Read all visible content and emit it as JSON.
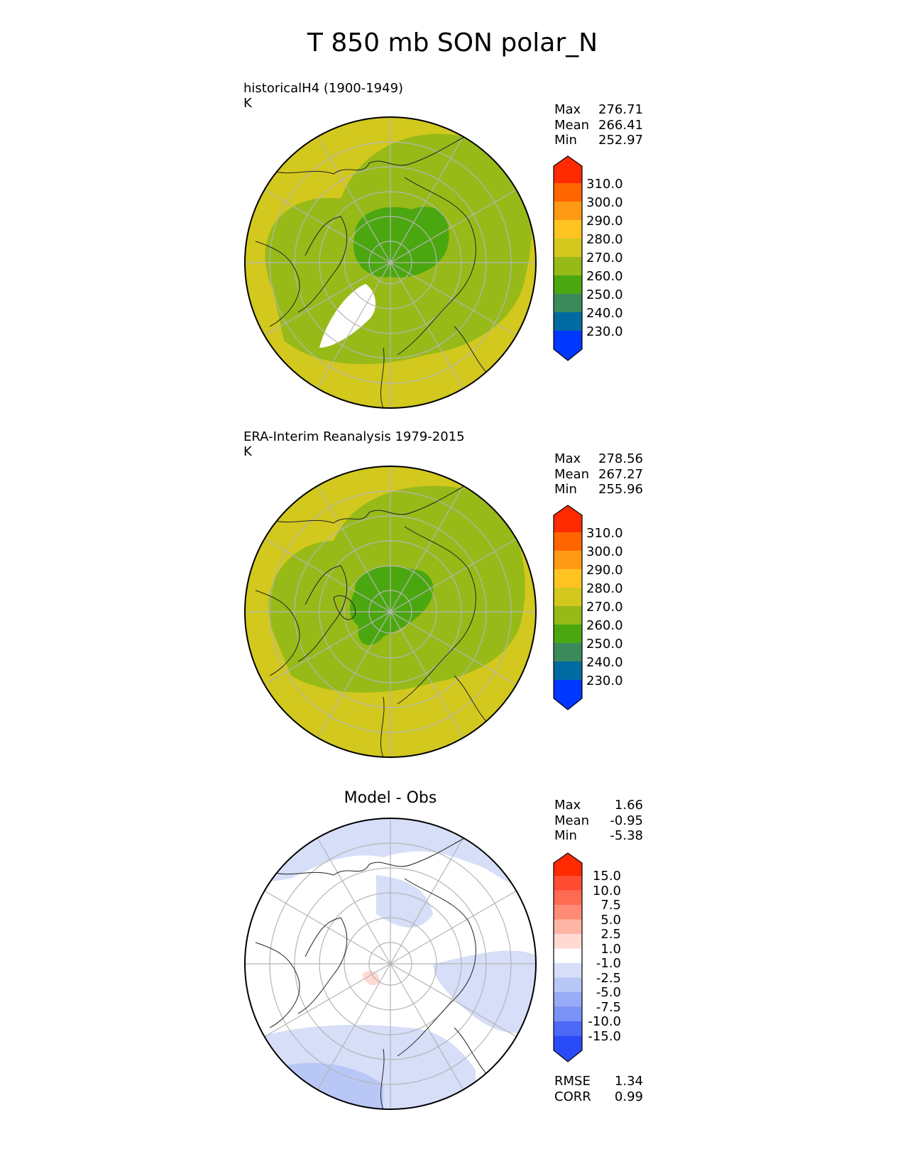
{
  "title": "T 850 mb SON polar_N",
  "panels": [
    {
      "id": "model",
      "label_line1": "historicalH4 (1900-1949)",
      "label_line2": "K",
      "stats": [
        {
          "name": "Max",
          "value": "276.71"
        },
        {
          "name": "Mean",
          "value": "266.41"
        },
        {
          "name": "Min",
          "value": "252.97"
        }
      ],
      "colorbar_labels": [
        "310.0",
        "300.0",
        "290.0",
        "280.0",
        "270.0",
        "260.0",
        "250.0",
        "240.0",
        "230.0"
      ]
    },
    {
      "id": "obs",
      "label_line1": "ERA-Interim Reanalysis 1979-2015",
      "label_line2": "K",
      "stats": [
        {
          "name": "Max",
          "value": "278.56"
        },
        {
          "name": "Mean",
          "value": "267.27"
        },
        {
          "name": "Min",
          "value": "255.96"
        }
      ],
      "colorbar_labels": [
        "310.0",
        "300.0",
        "290.0",
        "280.0",
        "270.0",
        "260.0",
        "250.0",
        "240.0",
        "230.0"
      ]
    },
    {
      "id": "diff",
      "center_title": "Model - Obs",
      "stats": [
        {
          "name": "Max",
          "value": "1.66"
        },
        {
          "name": "Mean",
          "value": "-0.95"
        },
        {
          "name": "Min",
          "value": "-5.38"
        }
      ],
      "colorbar_labels": [
        "15.0",
        "10.0",
        "7.5",
        "5.0",
        "2.5",
        "1.0",
        "-1.0",
        "-2.5",
        "-5.0",
        "-7.5",
        "-10.0",
        "-15.0"
      ],
      "metrics": [
        {
          "name": "RMSE",
          "value": "1.34"
        },
        {
          "name": "CORR",
          "value": "0.99"
        }
      ]
    }
  ],
  "colors": {
    "abs_colorbar": [
      "#ff2a00",
      "#ff6600",
      "#ff9a14",
      "#ffc421",
      "#d2c81e",
      "#97ba19",
      "#4ba70f",
      "#3b8a5b",
      "#006aa1",
      "#0037ff"
    ],
    "diff_colorbar": [
      "#ff2a00",
      "#ff4d33",
      "#ff6a52",
      "#ff8a75",
      "#ffb5a6",
      "#ffd9d2",
      "#ffffff",
      "#d6def8",
      "#b9c7f6",
      "#97abf6",
      "#7a91f6",
      "#4c6af6",
      "#2a4cf8",
      "#0a2cff"
    ],
    "yellow": "#d2c81e",
    "lightgreen": "#97ba19",
    "green": "#4ba70f",
    "diff_light": "#d6def8",
    "diff_mid": "#b9c7f6"
  }
}
